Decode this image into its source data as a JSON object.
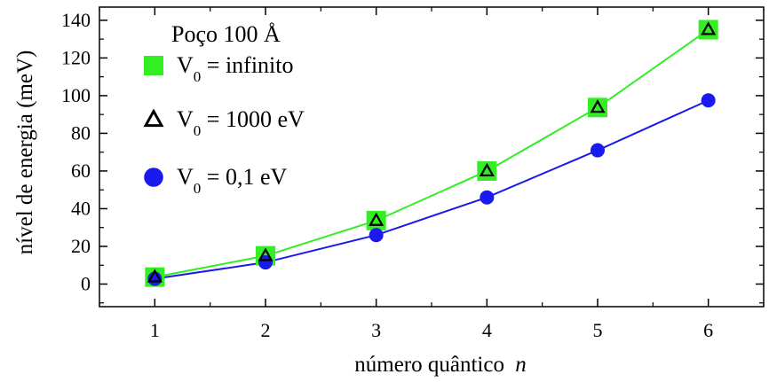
{
  "chart_data": {
    "type": "line",
    "title": "",
    "xlabel": "número quântico",
    "xlabel_var": "n",
    "ylabel": "nível de energia (meV)",
    "x": [
      1,
      2,
      3,
      4,
      5,
      6
    ],
    "xlim": [
      0.5,
      6.5
    ],
    "ylim": [
      -12,
      147
    ],
    "x_ticks": [
      1,
      2,
      3,
      4,
      5,
      6
    ],
    "y_ticks": [
      0,
      20,
      40,
      60,
      80,
      100,
      120,
      140
    ],
    "grid": false,
    "legend_position": "top-left",
    "legend_title": "Poço 100 Å",
    "series": [
      {
        "name": "V0 = infinito",
        "label_main": "V",
        "label_sub": "0",
        "label_rest": " = infinito",
        "marker": "square",
        "color": "#33ee22",
        "line_color": "#33ee22",
        "values": [
          3.7,
          15.0,
          33.7,
          60.0,
          93.7,
          135.0
        ]
      },
      {
        "name": "V0 = 1000 eV",
        "label_main": "V",
        "label_sub": "0",
        "label_rest": " = 1000 eV",
        "marker": "triangle-open",
        "color": "#000000",
        "line_color": null,
        "values": [
          3.7,
          15.0,
          33.7,
          60.0,
          93.7,
          135.0
        ]
      },
      {
        "name": "V0 = 0,1 eV",
        "label_main": "V",
        "label_sub": "0",
        "label_rest": " = 0,1 eV",
        "marker": "circle",
        "color": "#1a1aee",
        "line_color": "#1a1aee",
        "values": [
          2.8,
          11.5,
          26.0,
          46.0,
          71.0,
          97.5
        ]
      }
    ]
  }
}
